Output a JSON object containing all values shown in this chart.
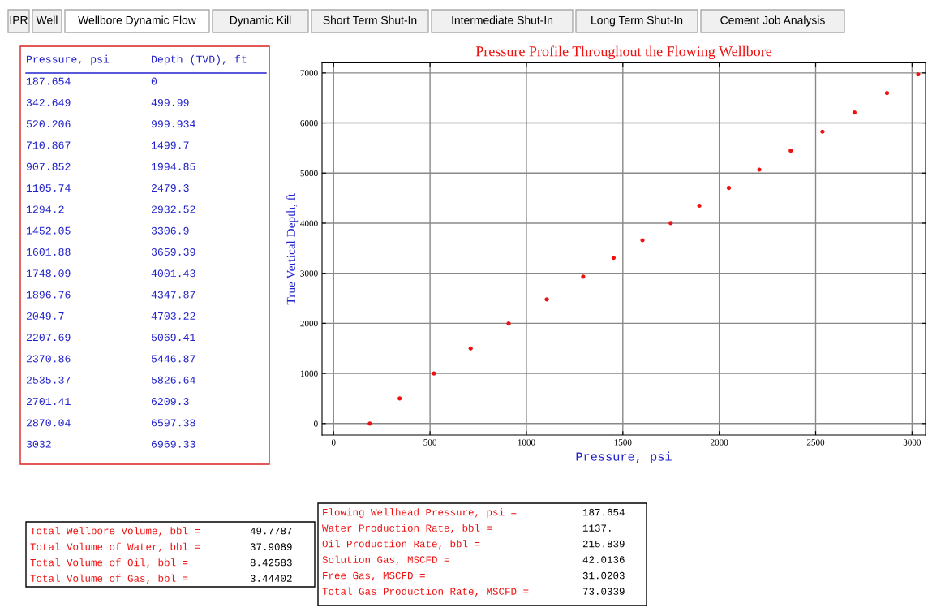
{
  "chart_data": {
    "type": "scatter",
    "title": "Pressure Profile Throughout the Flowing Wellbore",
    "xlabel": "Pressure, psi",
    "ylabel": "True Vertical Depth, ft",
    "x": [
      187.654,
      342.649,
      520.206,
      710.867,
      907.852,
      1105.74,
      1294.2,
      1452.05,
      1601.88,
      1748.09,
      1896.76,
      2049.7,
      2207.69,
      2370.86,
      2535.37,
      2701.41,
      2870.04,
      3032
    ],
    "series": [
      {
        "color": "#ee1111",
        "values": [
          0,
          499.99,
          999.934,
          1499.7,
          1994.85,
          2479.3,
          2932.52,
          3306.9,
          3659.39,
          4001.43,
          4347.87,
          4703.22,
          5069.41,
          5446.87,
          5826.64,
          6209.3,
          6597.38,
          6969.33
        ]
      }
    ],
    "xlim": [
      -60,
      3070
    ],
    "ylim": [
      -230,
      7200
    ],
    "xticks": [
      0,
      500,
      1000,
      1500,
      2000,
      2500,
      3000
    ],
    "yticks": [
      0,
      1000,
      2000,
      3000,
      4000,
      5000,
      6000,
      7000
    ],
    "grid": true,
    "marker": "circle",
    "annotations": [
      "IPR",
      "Well",
      "Wellbore Dynamic Flow",
      "Dynamic Kill",
      "Short Term Shut-In",
      "Intermediate Shut-In",
      "Long Term Shut-In",
      "Cement Job Analysis",
      "Pressure, psi",
      "Depth (TVD), ft",
      "187.654",
      "0",
      "342.649",
      "499.99",
      "520.206",
      "999.934",
      "710.867",
      "1499.7",
      "907.852",
      "1994.85",
      "1105.74",
      "2479.3",
      "1294.2",
      "2932.52",
      "1452.05",
      "3306.9",
      "1601.88",
      "3659.39",
      "1748.09",
      "4001.43",
      "1896.76",
      "4347.87",
      "2049.7",
      "4703.22",
      "2207.69",
      "5069.41",
      "2370.86",
      "5446.87",
      "2535.37",
      "5826.64",
      "2701.41",
      "6209.3",
      "2870.04",
      "6597.38",
      "3032",
      "6969.33",
      "Total Wellbore Volume, bbl = 49.7787",
      "Total Volume of Water, bbl = 37.9089",
      "Total Volume of Oil, bbl = 8.42583",
      "Total Volume of Gas, bbl = 3.44402",
      "Flowing Wellhead Pressure, psi = 187.654",
      "Water Production Rate, bbl = 1137.",
      "Oil Production Rate, bbl = 215.839",
      "Solution Gas, MSCFD = 42.0136",
      "Free Gas, MSCFD = 31.0203",
      "Total Gas Production Rate, MSCFD = 73.0339"
    ]
  }
}
